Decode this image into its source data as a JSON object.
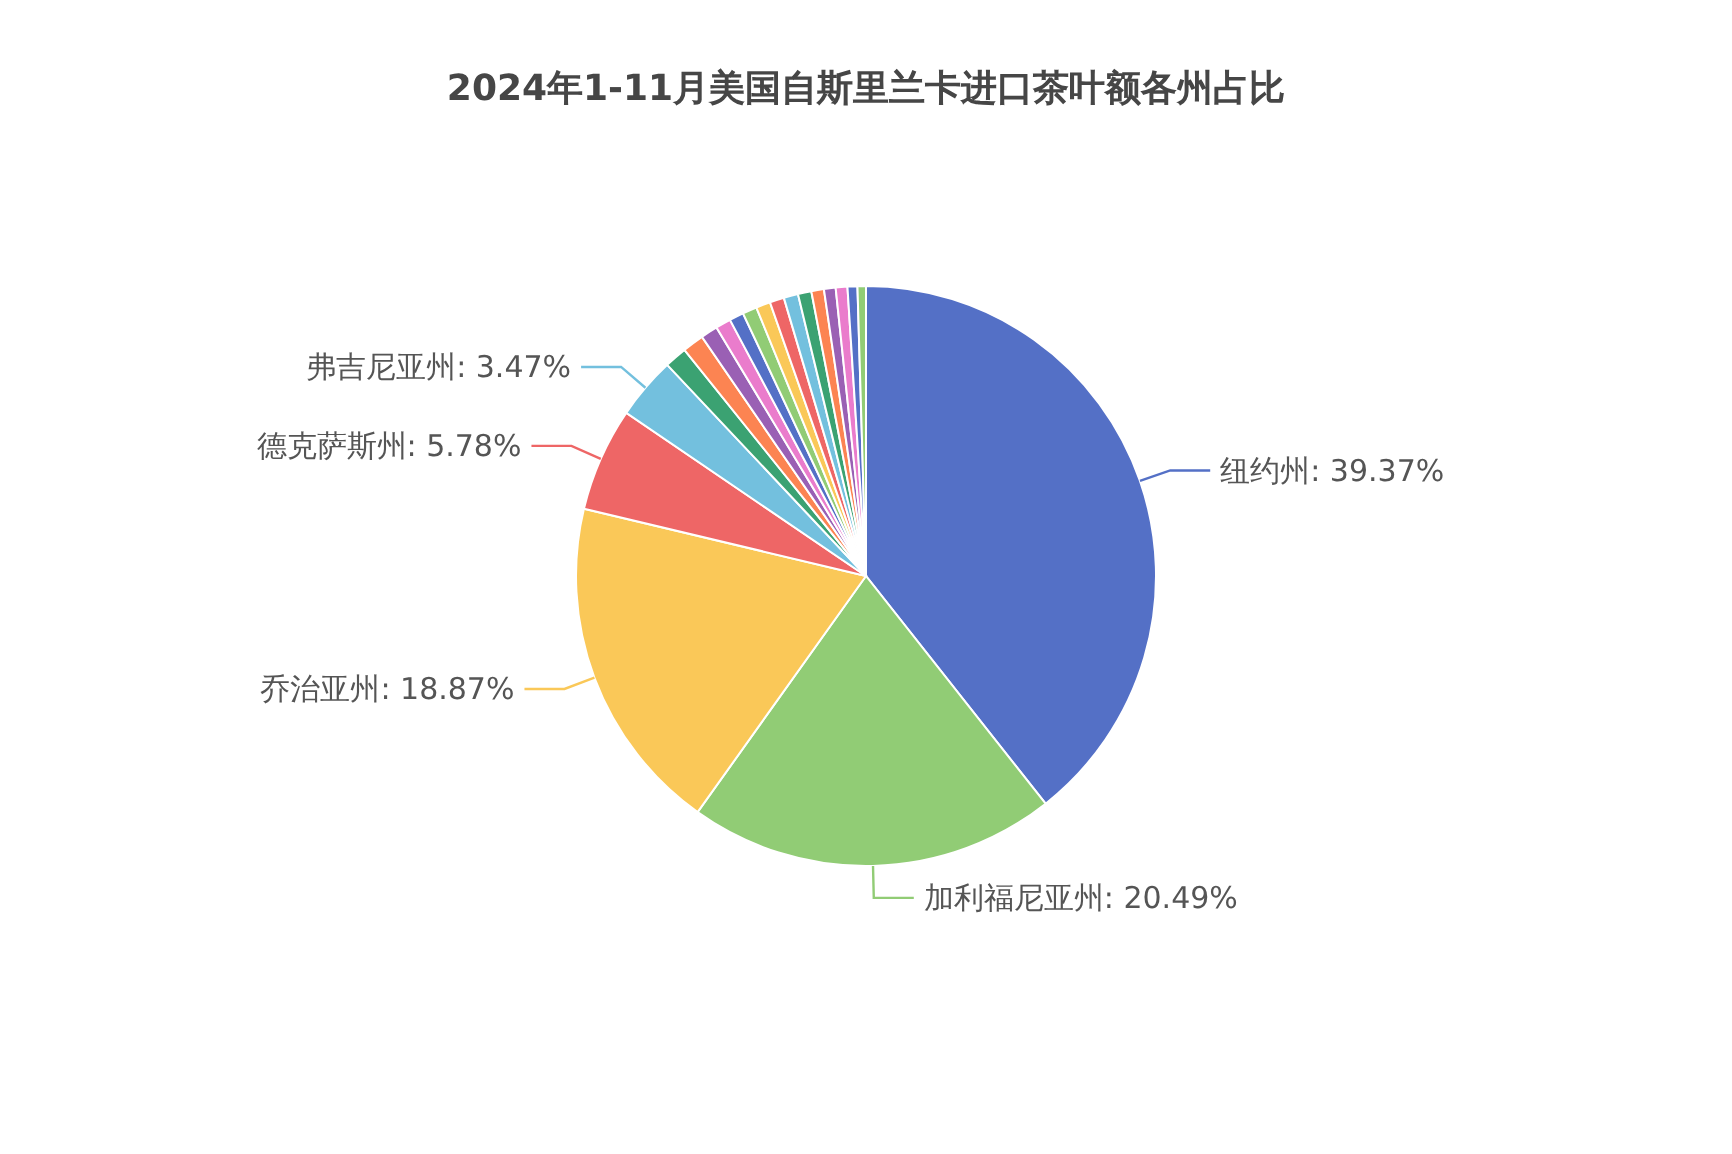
{
  "chart_data": {
    "type": "pie",
    "title": "2024年1-11月美国自斯里兰卡进口茶叶额各州占比",
    "categories": [
      "纽约州",
      "加利福尼亚州",
      "乔治亚州",
      "德克萨斯州",
      "弗吉尼亚州",
      null,
      null,
      null,
      null,
      null,
      null,
      null,
      null,
      null,
      null,
      null,
      null,
      null,
      null,
      null
    ],
    "values": [
      39.37,
      20.49,
      18.87,
      5.78,
      3.47,
      1.25,
      1.2,
      0.95,
      0.85,
      0.8,
      0.8,
      0.8,
      0.8,
      0.8,
      0.75,
      0.7,
      0.65,
      0.65,
      0.55,
      0.47
    ],
    "value_labels": [
      "39.37%",
      "20.49%",
      "18.87%",
      "5.78%",
      "3.47%",
      null,
      null,
      null,
      null,
      null,
      null,
      null,
      null,
      null,
      null,
      null,
      null,
      null,
      null,
      null
    ],
    "colors": [
      "#5470c6",
      "#91cc75",
      "#fac858",
      "#ee6666",
      "#73c0de",
      "#3ba272",
      "#fc8452",
      "#9a60b4",
      "#ea7ccc",
      "#5470c6",
      "#91cc75",
      "#fac858",
      "#ee6666",
      "#73c0de",
      "#3ba272",
      "#fc8452",
      "#9a60b4",
      "#ea7ccc",
      "#5470c6",
      "#91cc75"
    ],
    "legend": false
  }
}
